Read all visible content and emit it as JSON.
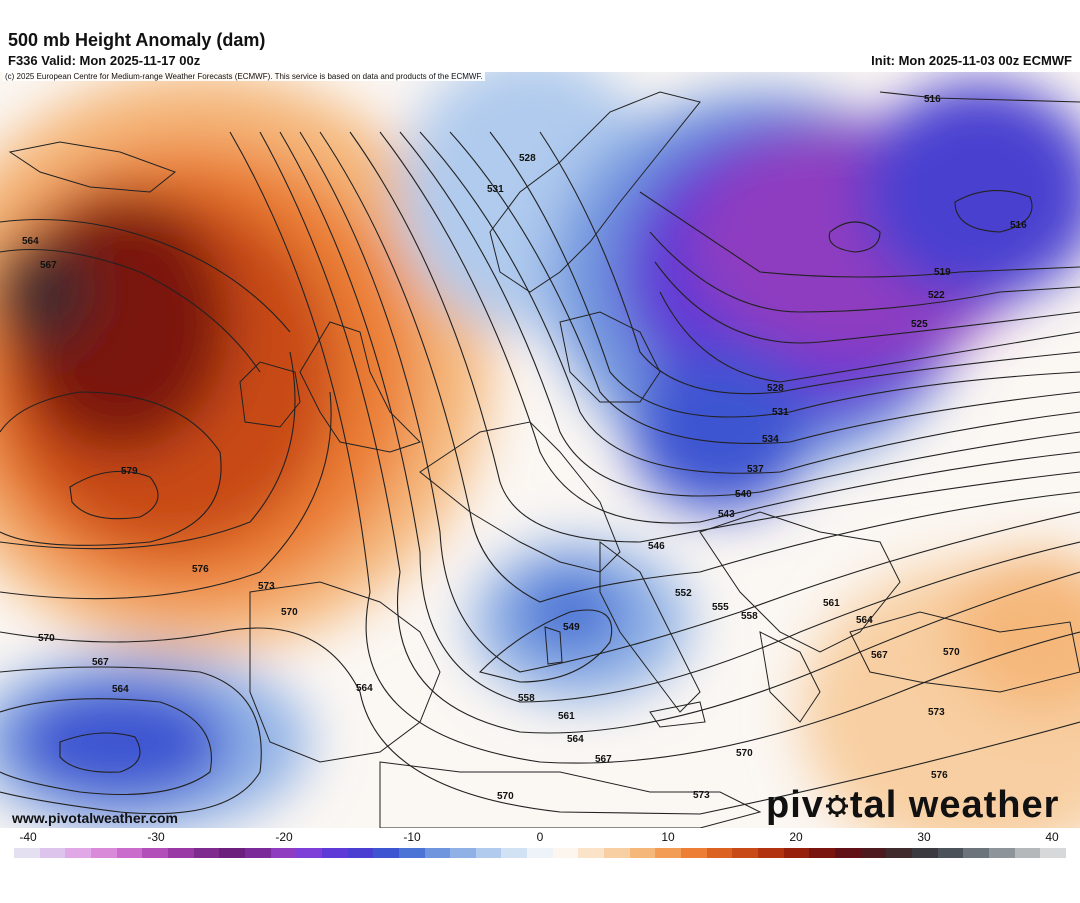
{
  "header": {
    "title": "500 mb Height Anomaly (dam)",
    "valid": "F336 Valid: Mon 2025-11-17 00z",
    "init": "Init: Mon 2025-11-03 00z ECMWF",
    "copyright": "(c) 2025 European Centre for Medium-range Weather Forecasts (ECMWF). This service is based on data and products of the ECMWF."
  },
  "footer": {
    "website": "www.pivotalweather.com",
    "logo_left": "piv",
    "logo_right": "tal weather"
  },
  "colorbar": {
    "ticks": [
      {
        "label": "-40",
        "value": -40
      },
      {
        "label": "-30",
        "value": -30
      },
      {
        "label": "-20",
        "value": -20
      },
      {
        "label": "-10",
        "value": -10
      },
      {
        "label": "0",
        "value": 0
      },
      {
        "label": "10",
        "value": 10
      },
      {
        "label": "20",
        "value": 20
      },
      {
        "label": "30",
        "value": 30
      },
      {
        "label": "40",
        "value": 40
      }
    ],
    "min": -40,
    "max": 40,
    "colors": [
      "#e4e0f2",
      "#dcc4ec",
      "#e0a8e6",
      "#d98ad8",
      "#c96ccb",
      "#b24fb9",
      "#9a39a6",
      "#7f2a8f",
      "#6d1f7d",
      "#7a2b99",
      "#8f3cc0",
      "#7e3fd8",
      "#5e3ad6",
      "#4a3fd0",
      "#3d55d1",
      "#4c74d6",
      "#6f95de",
      "#8fb1e6",
      "#b0cbee",
      "#d2e2f5",
      "#eef3fa",
      "#fdf6ee",
      "#fbe3c9",
      "#f8cfa2",
      "#f5b77a",
      "#f29c55",
      "#ec7f35",
      "#dc6221",
      "#c84a16",
      "#b1330f",
      "#97200d",
      "#7a140f",
      "#611018",
      "#4d1b1f",
      "#3f2b2e",
      "#3b3a40",
      "#4c525a",
      "#6b737b",
      "#8e959a",
      "#b4b8bb",
      "#d6d8d9"
    ]
  },
  "map": {
    "contour_labels": [
      "516",
      "516",
      "519",
      "522",
      "525",
      "528",
      "528",
      "531",
      "531",
      "534",
      "537",
      "540",
      "543",
      "546",
      "549",
      "552",
      "555",
      "558",
      "558",
      "561",
      "561",
      "564",
      "564",
      "564",
      "564",
      "564",
      "567",
      "567",
      "567",
      "567",
      "570",
      "570",
      "570",
      "570",
      "570",
      "573",
      "573",
      "573",
      "576",
      "576",
      "579"
    ]
  }
}
